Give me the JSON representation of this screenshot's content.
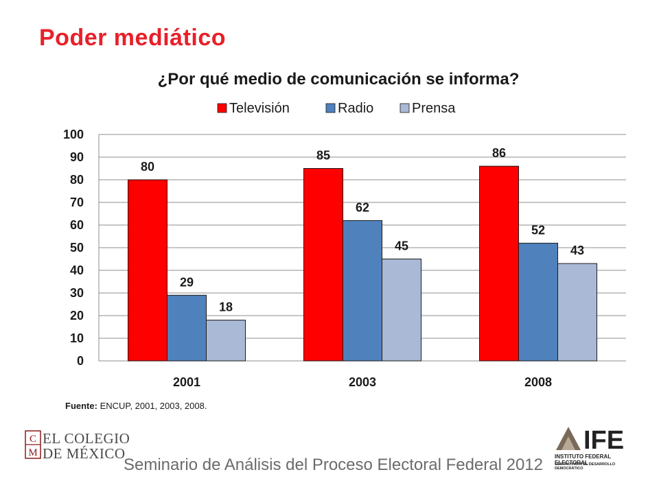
{
  "slide": {
    "title": "Poder mediático",
    "source_label": "Fuente:",
    "source_text": "ENCUP, 2001, 2003, 2008.",
    "footer": "Seminario de Análisis del Proceso Electoral Federal 2012"
  },
  "logos": {
    "colmex_line1": "EL COLEGIO",
    "colmex_line2": "DE MÉXICO",
    "ife_name": "IFE",
    "ife_full": "INSTITUTO FEDERAL ELECTORAL",
    "ife_sub": "CENTRO PARA EL DESARROLLO DEMOCRÁTICO"
  },
  "chart_data": {
    "type": "bar",
    "title": "¿Por qué medio de comunicación se informa?",
    "categories": [
      "2001",
      "2003",
      "2008"
    ],
    "series": [
      {
        "name": "Televisión",
        "color": "#ff0000",
        "values": [
          80,
          85,
          86
        ]
      },
      {
        "name": "Radio",
        "color": "#4f81bd",
        "values": [
          29,
          62,
          52
        ]
      },
      {
        "name": "Prensa",
        "color": "#a9b9d6",
        "values": [
          18,
          45,
          43
        ]
      }
    ],
    "ylim": [
      0,
      100
    ],
    "yticks": [
      0,
      10,
      20,
      30,
      40,
      50,
      60,
      70,
      80,
      90,
      100
    ],
    "grid": true,
    "legend_position": "top"
  }
}
